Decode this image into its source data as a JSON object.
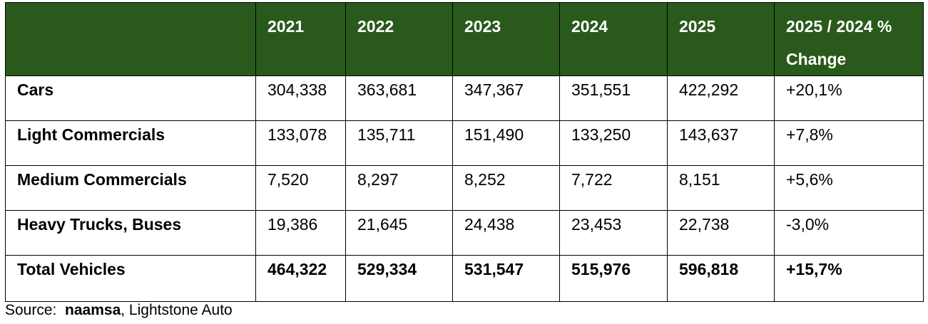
{
  "chart_data": {
    "type": "table",
    "columns": [
      "",
      "2021",
      "2022",
      "2023",
      "2024",
      "2025",
      "2025 / 2024 % Change"
    ],
    "header_change_line1": "2025 / 2024 %",
    "header_change_line2": "Change",
    "rows": [
      {
        "label": "Cars",
        "values": [
          "304,338",
          "363,681",
          "347,367",
          "351,551",
          "422,292"
        ],
        "change": "+20,1%"
      },
      {
        "label": "Light Commercials",
        "values": [
          "133,078",
          "135,711",
          "151,490",
          "133,250",
          "143,637"
        ],
        "change": "+7,8%"
      },
      {
        "label": "Medium Commercials",
        "values": [
          "7,520",
          "8,297",
          "8,252",
          "7,722",
          "8,151"
        ],
        "change": "+5,6%"
      },
      {
        "label": "Heavy Trucks, Buses",
        "values": [
          "19,386",
          "21,645",
          "24,438",
          "23,453",
          "22,738"
        ],
        "change": "-3,0%"
      },
      {
        "label": "Total Vehicles",
        "values": [
          "464,322",
          "529,334",
          "531,547",
          "515,976",
          "596,818"
        ],
        "change": "+15,7%"
      }
    ],
    "source_prefix": "Source:",
    "source_org": "naamsa",
    "source_rest": ", Lightstone Auto"
  },
  "colors": {
    "header_bg": "#2a5a1b",
    "header_text": "#ffffff"
  }
}
